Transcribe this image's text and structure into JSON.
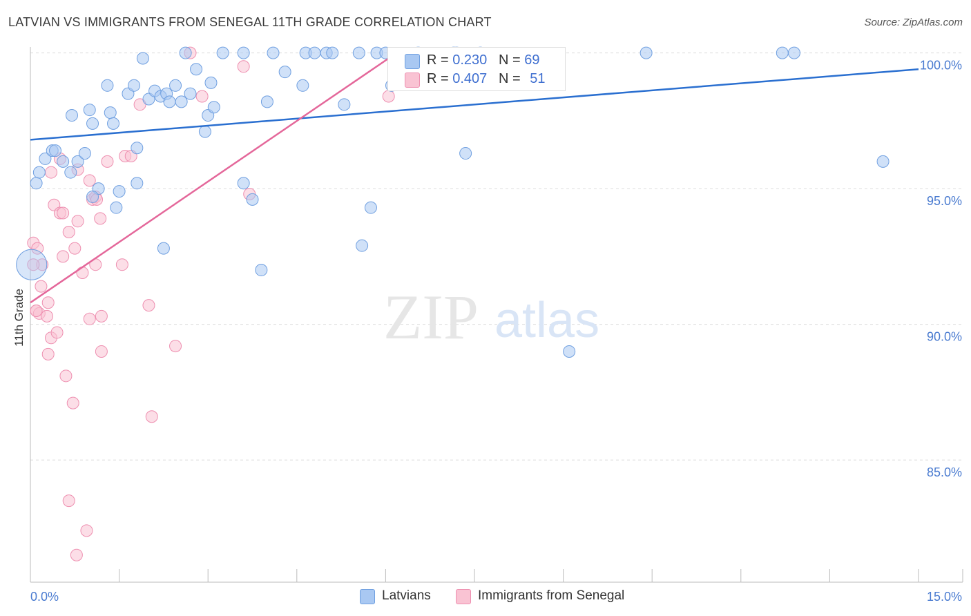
{
  "title": "LATVIAN VS IMMIGRANTS FROM SENEGAL 11TH GRADE CORRELATION CHART",
  "source": "Source: ZipAtlas.com",
  "watermark": {
    "zip": "ZIP",
    "atlas": "atlas"
  },
  "legend": {
    "r_label": "R =",
    "n_label": "N =",
    "rows": [
      {
        "r": "0.230",
        "n": "69",
        "color": "#a9c8f2",
        "border": "#6f9fe0"
      },
      {
        "r": "0.407",
        "n": "51",
        "color": "#f9c3d3",
        "border": "#ee8fb0"
      }
    ]
  },
  "bottom_legend": [
    "Latvians",
    "Immigrants from Senegal"
  ],
  "chart_data": {
    "type": "scatter",
    "title": "LATVIAN VS IMMIGRANTS FROM SENEGAL 11TH GRADE CORRELATION CHART",
    "xlabel": "",
    "ylabel": "11th Grade",
    "xlim": [
      0,
      15
    ],
    "ylim": [
      80.5,
      100.5
    ],
    "x_tick_labels": [
      "0.0%",
      "15.0%"
    ],
    "y_ticks": [
      {
        "value": 100,
        "label": "100.0%"
      },
      {
        "value": 95,
        "label": "95.0%"
      },
      {
        "value": 90,
        "label": "90.0%"
      },
      {
        "value": 85,
        "label": "85.0%"
      }
    ],
    "series": [
      {
        "name": "Latvians",
        "color": "#a9c8f2",
        "stroke": "#6f9fe0",
        "line_color": "#2a6fd0",
        "r": 0.23,
        "n": 69,
        "trend": {
          "x": [
            0,
            15
          ],
          "y": [
            96.8,
            99.4
          ]
        },
        "points": [
          [
            0.1,
            95.2
          ],
          [
            0.15,
            95.6
          ],
          [
            0.25,
            96.1
          ],
          [
            0.37,
            96.4
          ],
          [
            0.42,
            96.4
          ],
          [
            0.55,
            96.0
          ],
          [
            0.68,
            95.6
          ],
          [
            0.8,
            96.0
          ],
          [
            0.92,
            96.3
          ],
          [
            1.15,
            95.0
          ],
          [
            1.05,
            94.7
          ],
          [
            0.7,
            97.7
          ],
          [
            1.0,
            97.9
          ],
          [
            1.05,
            97.4
          ],
          [
            1.35,
            97.8
          ],
          [
            1.4,
            97.4
          ],
          [
            1.3,
            98.8
          ],
          [
            1.65,
            98.5
          ],
          [
            1.75,
            98.8
          ],
          [
            1.9,
            99.8
          ],
          [
            2.0,
            98.3
          ],
          [
            2.1,
            98.6
          ],
          [
            2.2,
            98.4
          ],
          [
            2.3,
            98.5
          ],
          [
            2.35,
            98.2
          ],
          [
            2.45,
            98.8
          ],
          [
            2.55,
            98.2
          ],
          [
            2.62,
            100.0
          ],
          [
            2.7,
            98.5
          ],
          [
            2.8,
            99.4
          ],
          [
            2.95,
            97.1
          ],
          [
            3.0,
            97.7
          ],
          [
            3.05,
            98.9
          ],
          [
            3.1,
            98.0
          ],
          [
            3.25,
            100.0
          ],
          [
            3.6,
            100.0
          ],
          [
            4.1,
            100.0
          ],
          [
            4.0,
            98.2
          ],
          [
            4.3,
            99.3
          ],
          [
            4.65,
            100.0
          ],
          [
            4.6,
            98.8
          ],
          [
            4.8,
            100.0
          ],
          [
            5.0,
            100.0
          ],
          [
            5.1,
            100.0
          ],
          [
            5.3,
            98.1
          ],
          [
            5.55,
            100.0
          ],
          [
            5.85,
            100.0
          ],
          [
            6.0,
            100.0
          ],
          [
            6.1,
            98.8
          ],
          [
            6.55,
            100.0
          ],
          [
            7.15,
            100.0
          ],
          [
            7.2,
            100.0
          ],
          [
            7.6,
            100.0
          ],
          [
            10.4,
            100.0
          ],
          [
            12.7,
            100.0
          ],
          [
            12.9,
            100.0
          ],
          [
            1.8,
            96.5
          ],
          [
            1.5,
            94.9
          ],
          [
            1.45,
            94.3
          ],
          [
            1.8,
            95.2
          ],
          [
            3.6,
            95.2
          ],
          [
            3.75,
            94.6
          ],
          [
            5.75,
            94.3
          ],
          [
            2.25,
            92.8
          ],
          [
            3.9,
            92.0
          ],
          [
            5.6,
            92.9
          ],
          [
            7.35,
            96.3
          ],
          [
            9.1,
            89.0
          ],
          [
            14.4,
            96.0
          ]
        ]
      },
      {
        "name": "Immigrants from Senegal",
        "color": "#f9c3d3",
        "stroke": "#ee8fb0",
        "line_color": "#e4679a",
        "r": 0.407,
        "n": 51,
        "trend": {
          "x": [
            0,
            6.05
          ],
          "y": 90.8,
          "y_end": 99.8
        },
        "points": [
          [
            0.05,
            93.0
          ],
          [
            0.12,
            92.8
          ],
          [
            0.2,
            92.2
          ],
          [
            0.18,
            91.4
          ],
          [
            0.1,
            90.5
          ],
          [
            0.15,
            90.4
          ],
          [
            0.3,
            90.8
          ],
          [
            0.28,
            90.3
          ],
          [
            0.35,
            89.5
          ],
          [
            0.45,
            89.7
          ],
          [
            0.3,
            88.9
          ],
          [
            0.4,
            94.4
          ],
          [
            0.5,
            94.1
          ],
          [
            0.55,
            94.1
          ],
          [
            0.55,
            92.5
          ],
          [
            0.65,
            93.4
          ],
          [
            0.75,
            92.8
          ],
          [
            0.8,
            93.8
          ],
          [
            0.88,
            91.9
          ],
          [
            1.0,
            95.3
          ],
          [
            1.05,
            94.6
          ],
          [
            1.1,
            94.7
          ],
          [
            1.12,
            94.6
          ],
          [
            1.18,
            93.9
          ],
          [
            1.1,
            92.2
          ],
          [
            1.0,
            90.2
          ],
          [
            1.2,
            90.3
          ],
          [
            1.2,
            89.0
          ],
          [
            0.6,
            88.1
          ],
          [
            0.72,
            87.1
          ],
          [
            0.35,
            95.6
          ],
          [
            0.5,
            96.1
          ],
          [
            0.8,
            95.7
          ],
          [
            1.3,
            96.0
          ],
          [
            1.6,
            96.2
          ],
          [
            1.7,
            96.2
          ],
          [
            1.85,
            98.1
          ],
          [
            2.7,
            100.0
          ],
          [
            2.9,
            98.4
          ],
          [
            3.6,
            99.5
          ],
          [
            3.7,
            94.8
          ],
          [
            6.05,
            98.4
          ],
          [
            1.55,
            92.2
          ],
          [
            2.0,
            90.7
          ],
          [
            2.45,
            89.2
          ],
          [
            2.05,
            86.6
          ],
          [
            0.65,
            83.5
          ],
          [
            0.95,
            82.4
          ],
          [
            0.78,
            81.5
          ],
          [
            0.05,
            92.2
          ],
          [
            0.1,
            90.5
          ]
        ]
      }
    ]
  }
}
